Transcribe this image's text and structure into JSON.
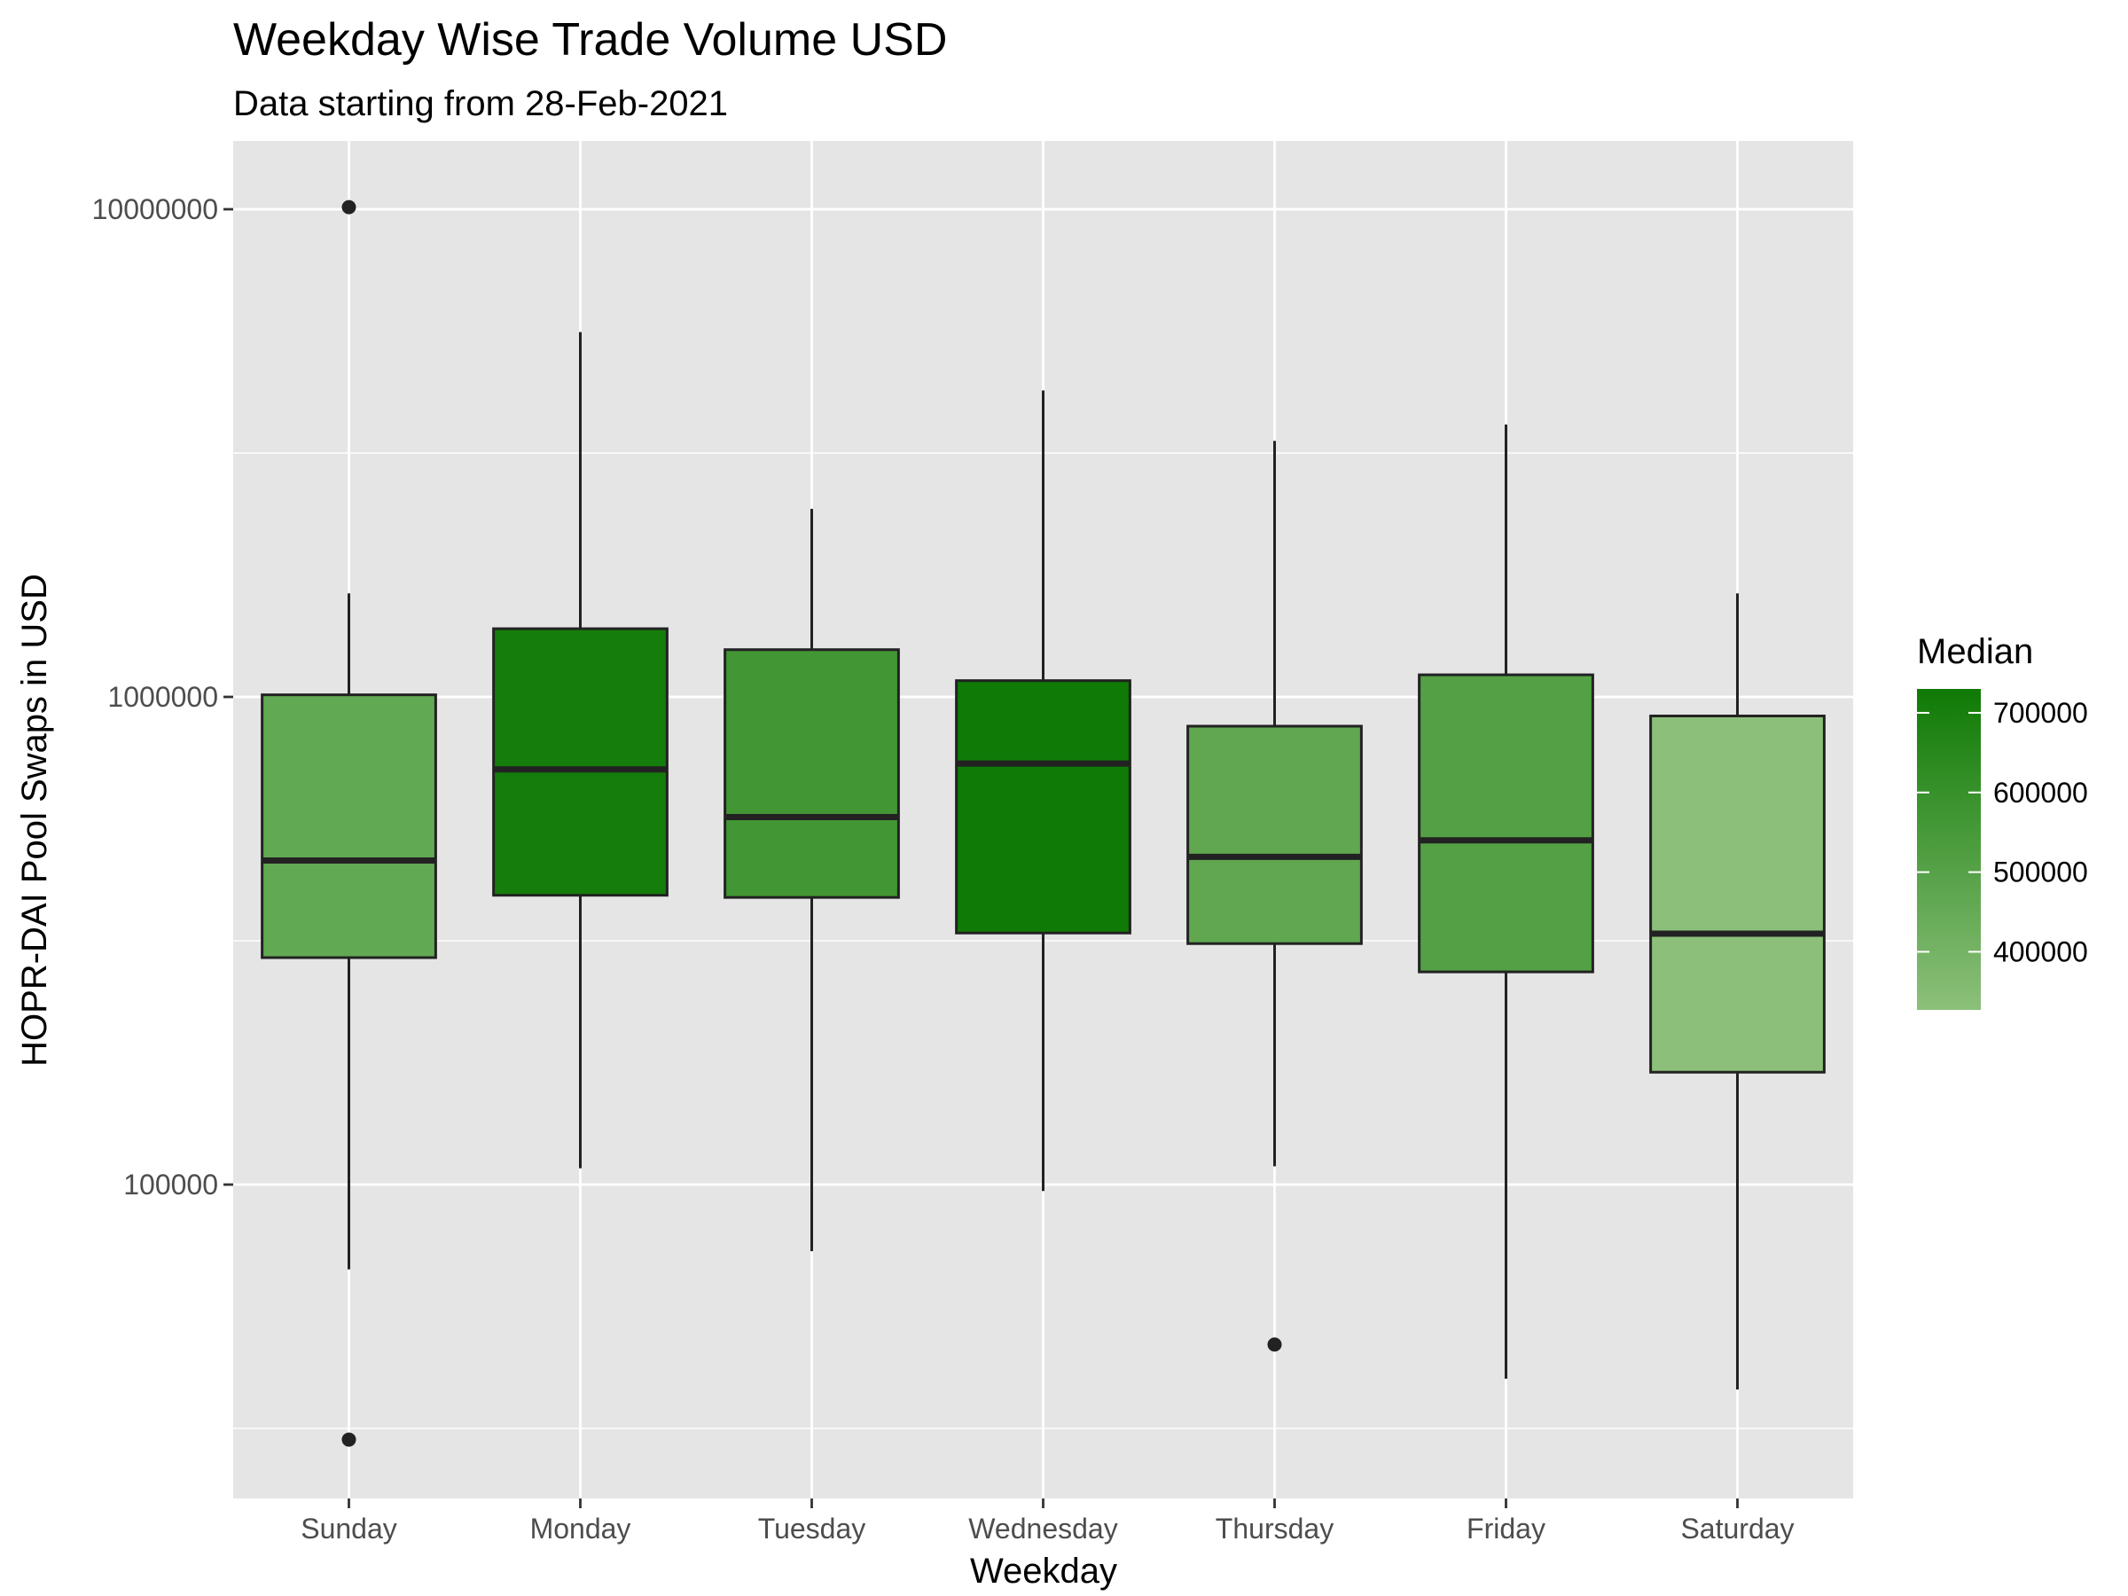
{
  "chart_data": {
    "type": "boxplot",
    "title": "Weekday Wise Trade Volume USD",
    "subtitle": "Data starting from 28-Feb-2021",
    "xlabel": "Weekday",
    "ylabel": "HOPR-DAI Pool Swaps in USD",
    "y_scale": "log10",
    "ylim": [
      22000,
      13000000
    ],
    "y_ticks": [
      100000,
      1000000,
      10000000
    ],
    "y_tick_labels": [
      "100000",
      "1000000",
      "10000000"
    ],
    "grid": true,
    "colors": {
      "panel_background": "#e5e5e5",
      "grid_line": "#ffffff",
      "box_outline": "#222222",
      "fill_low": "#8cc07a",
      "fill_high": "#0f7a05"
    },
    "categories": [
      "Sunday",
      "Monday",
      "Tuesday",
      "Wednesday",
      "Thursday",
      "Friday",
      "Saturday"
    ],
    "boxes": [
      {
        "whisker_low": 67000,
        "q1": 292000,
        "median": 462000,
        "q3": 1010000,
        "whisker_high": 1630000,
        "outliers": [
          10100000,
          30000
        ]
      },
      {
        "whisker_low": 108000,
        "q1": 392000,
        "median": 710000,
        "q3": 1380000,
        "whisker_high": 5600000,
        "outliers": []
      },
      {
        "whisker_low": 73000,
        "q1": 388000,
        "median": 567000,
        "q3": 1250000,
        "whisker_high": 2430000,
        "outliers": []
      },
      {
        "whisker_low": 97000,
        "q1": 328000,
        "median": 730000,
        "q3": 1080000,
        "whisker_high": 4250000,
        "outliers": []
      },
      {
        "whisker_low": 109000,
        "q1": 312000,
        "median": 470000,
        "q3": 871000,
        "whisker_high": 3350000,
        "outliers": [
          47000
        ]
      },
      {
        "whisker_low": 40000,
        "q1": 273000,
        "median": 508000,
        "q3": 1110000,
        "whisker_high": 3620000,
        "outliers": []
      },
      {
        "whisker_low": 38000,
        "q1": 170000,
        "median": 327000,
        "q3": 914000,
        "whisker_high": 1630000,
        "outliers": []
      }
    ],
    "legend": {
      "title": "Median",
      "position": "right",
      "range": [
        327000,
        730000
      ],
      "ticks": [
        400000,
        500000,
        600000,
        700000
      ],
      "tick_labels": [
        "400000",
        "500000",
        "600000",
        "700000"
      ]
    }
  }
}
